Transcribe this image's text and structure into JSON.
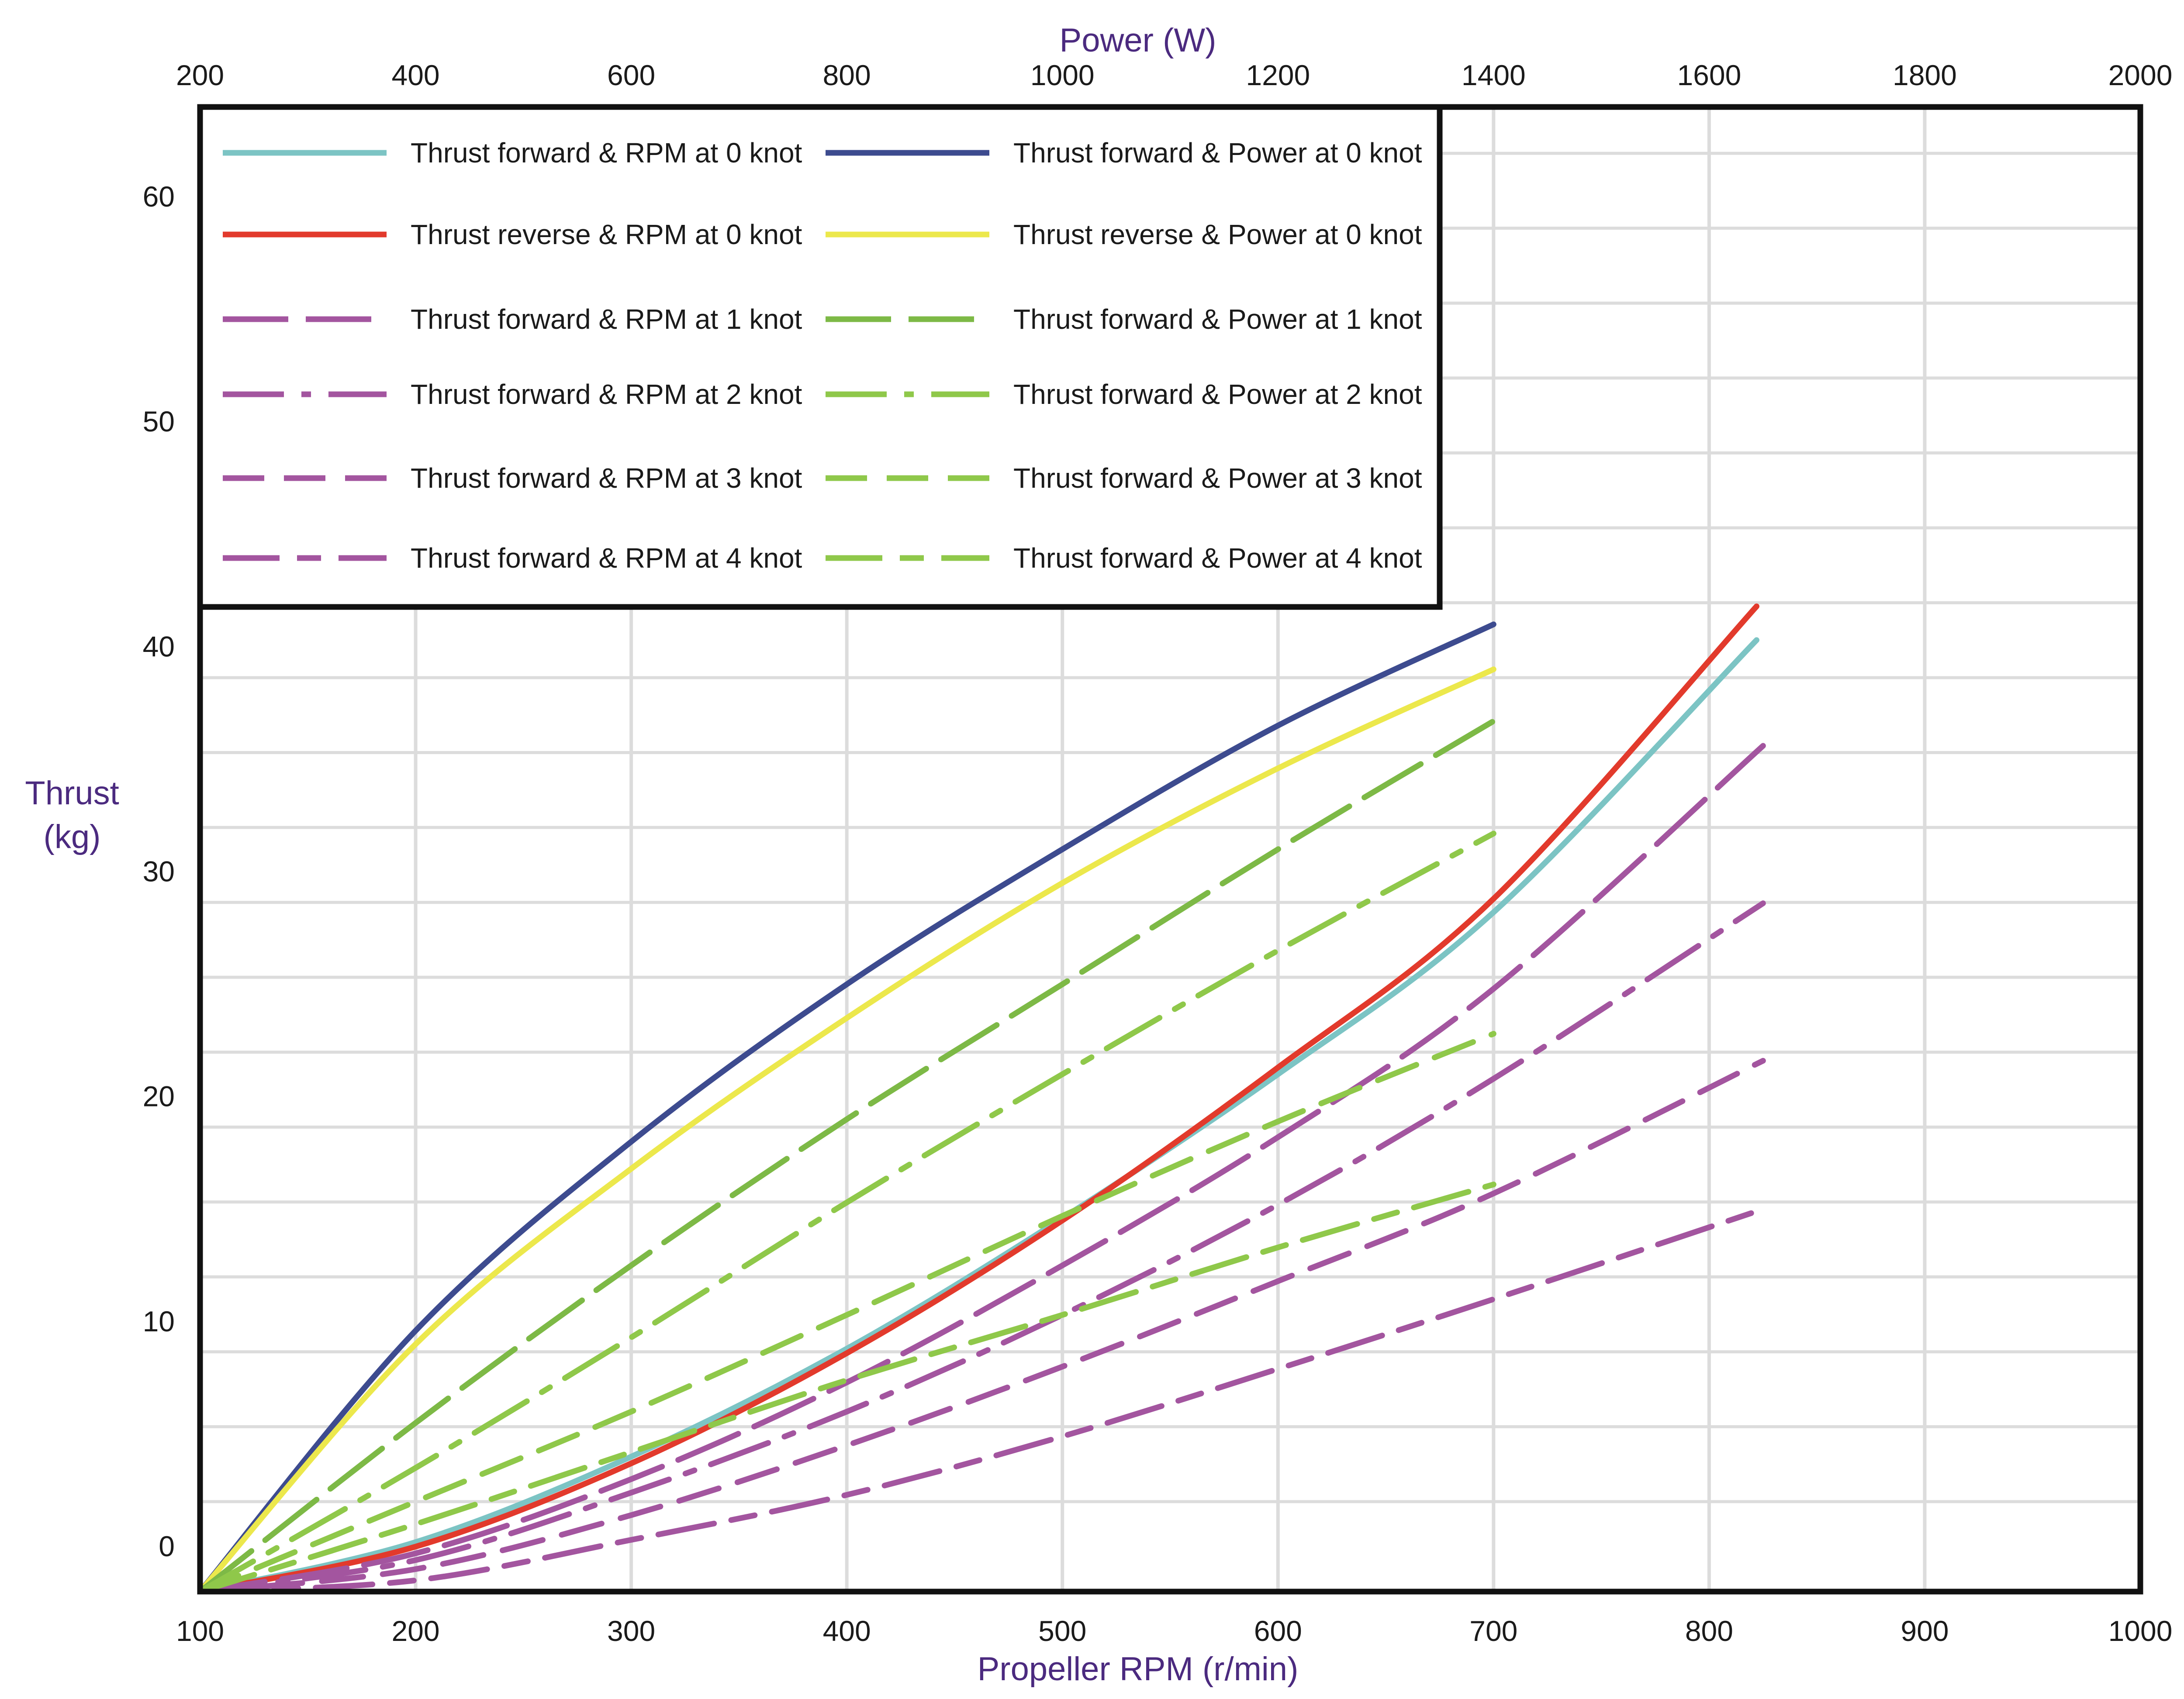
{
  "chart_data": {
    "type": "line",
    "x_bottom": {
      "label": "Propeller RPM (r/min)",
      "range": [
        100,
        1000
      ],
      "ticks": [
        100,
        200,
        300,
        400,
        500,
        600,
        700,
        800,
        900,
        1000
      ]
    },
    "x_top": {
      "label": "Power (W)",
      "range": [
        200,
        2000
      ],
      "ticks": [
        200,
        400,
        600,
        800,
        1000,
        1200,
        1400,
        1600,
        1800,
        2000
      ]
    },
    "y": {
      "label_line1": "Thrust",
      "label_line2": "(kg)",
      "range": [
        -2,
        64
      ],
      "ticks": [
        0,
        10,
        20,
        30,
        40,
        50,
        60
      ]
    },
    "grid": true,
    "legend_position": "top-left",
    "series": [
      {
        "name": "Thrust forward &  RPM at 0 knot",
        "axis": "rpm",
        "color": "#7cc4c4",
        "dash": "solid",
        "points": [
          [
            100,
            -2
          ],
          [
            200,
            0.2
          ],
          [
            300,
            4
          ],
          [
            400,
            8.8
          ],
          [
            500,
            14.6
          ],
          [
            600,
            21
          ],
          [
            700,
            28.2
          ],
          [
            822,
            40.3
          ]
        ]
      },
      {
        "name": "Thrust forward & Power at 0 knot",
        "axis": "power",
        "color": "#3d4b8f",
        "dash": "solid",
        "points": [
          [
            200,
            -2
          ],
          [
            400,
            9.6
          ],
          [
            600,
            18
          ],
          [
            800,
            25
          ],
          [
            1000,
            31
          ],
          [
            1200,
            36.5
          ],
          [
            1400,
            41
          ]
        ]
      },
      {
        "name": "Thrust reverse  &  RPM at 0 knot",
        "axis": "rpm",
        "color": "#e23a2c",
        "dash": "solid",
        "points": [
          [
            100,
            -2
          ],
          [
            200,
            0
          ],
          [
            300,
            3.7
          ],
          [
            400,
            8.6
          ],
          [
            500,
            14.5
          ],
          [
            600,
            21.3
          ],
          [
            700,
            28.8
          ],
          [
            822,
            41.8
          ]
        ]
      },
      {
        "name": "Thrust reverse & Power at 0 knot",
        "axis": "power",
        "color": "#ece84c",
        "dash": "solid",
        "points": [
          [
            200,
            -2
          ],
          [
            400,
            9
          ],
          [
            600,
            16.8
          ],
          [
            800,
            23.5
          ],
          [
            1000,
            29.5
          ],
          [
            1200,
            34.6
          ],
          [
            1400,
            39
          ]
        ]
      },
      {
        "name": "Thrust forward &  RPM at 1 knot",
        "axis": "rpm",
        "color": "#a3559f",
        "dash": "long",
        "points": [
          [
            100,
            -2
          ],
          [
            200,
            -0.3
          ],
          [
            300,
            3
          ],
          [
            400,
            7.3
          ],
          [
            500,
            12.5
          ],
          [
            600,
            18.2
          ],
          [
            700,
            24.8
          ],
          [
            825,
            35.6
          ]
        ]
      },
      {
        "name": "Thrust forward & Power at 1 knot",
        "axis": "power",
        "color": "#7db946",
        "dash": "long",
        "points": [
          [
            200,
            -2
          ],
          [
            400,
            5.5
          ],
          [
            600,
            12.5
          ],
          [
            800,
            19
          ],
          [
            1000,
            25
          ],
          [
            1200,
            31
          ],
          [
            1400,
            36.7
          ]
        ]
      },
      {
        "name": "Thrust forward &  RPM at 2 knot",
        "axis": "rpm",
        "color": "#a3559f",
        "dash": "dashdot",
        "points": [
          [
            100,
            -2
          ],
          [
            200,
            -0.6
          ],
          [
            300,
            2.4
          ],
          [
            400,
            6
          ],
          [
            500,
            10.3
          ],
          [
            600,
            15.2
          ],
          [
            700,
            20.8
          ],
          [
            825,
            28.6
          ]
        ]
      },
      {
        "name": "Thrust forward & Power at 2 knot",
        "axis": "power",
        "color": "#8fc84a",
        "dash": "dashdot",
        "points": [
          [
            200,
            -2
          ],
          [
            400,
            3.5
          ],
          [
            600,
            9.3
          ],
          [
            800,
            15.3
          ],
          [
            1000,
            21
          ],
          [
            1200,
            26.5
          ],
          [
            1400,
            31.7
          ]
        ]
      },
      {
        "name": "Thrust forward &  RPM at 3 knot",
        "axis": "rpm",
        "color": "#a3559f",
        "dash": "medium",
        "points": [
          [
            100,
            -2
          ],
          [
            200,
            -1
          ],
          [
            300,
            1.4
          ],
          [
            400,
            4.5
          ],
          [
            500,
            8
          ],
          [
            600,
            11.8
          ],
          [
            700,
            15.7
          ],
          [
            825,
            21.6
          ]
        ]
      },
      {
        "name": "Thrust forward & Power at 3 knot",
        "axis": "power",
        "color": "#8fc84a",
        "dash": "medium",
        "points": [
          [
            200,
            -2
          ],
          [
            400,
            2
          ],
          [
            600,
            6
          ],
          [
            800,
            10.3
          ],
          [
            1000,
            14.7
          ],
          [
            1200,
            18.9
          ],
          [
            1400,
            22.8
          ]
        ]
      },
      {
        "name": "Thrust forward &  RPM at 4 knot",
        "axis": "rpm",
        "color": "#a3559f",
        "dash": "longshort",
        "points": [
          [
            100,
            -2
          ],
          [
            200,
            -1.5
          ],
          [
            300,
            0.3
          ],
          [
            400,
            2.3
          ],
          [
            500,
            4.9
          ],
          [
            600,
            7.9
          ],
          [
            700,
            11
          ],
          [
            825,
            15
          ]
        ]
      },
      {
        "name": "Thrust forward & Power at 4 knot",
        "axis": "power",
        "color": "#8fc84a",
        "dash": "longshort",
        "points": [
          [
            200,
            -2
          ],
          [
            400,
            1
          ],
          [
            600,
            4.2
          ],
          [
            800,
            7.4
          ],
          [
            1000,
            10.3
          ],
          [
            1200,
            13.3
          ],
          [
            1400,
            16.1
          ]
        ]
      }
    ]
  },
  "colors": {
    "axis_title": "#4b2a7f",
    "grid": "#dcdcdc",
    "frame": "#111111"
  }
}
